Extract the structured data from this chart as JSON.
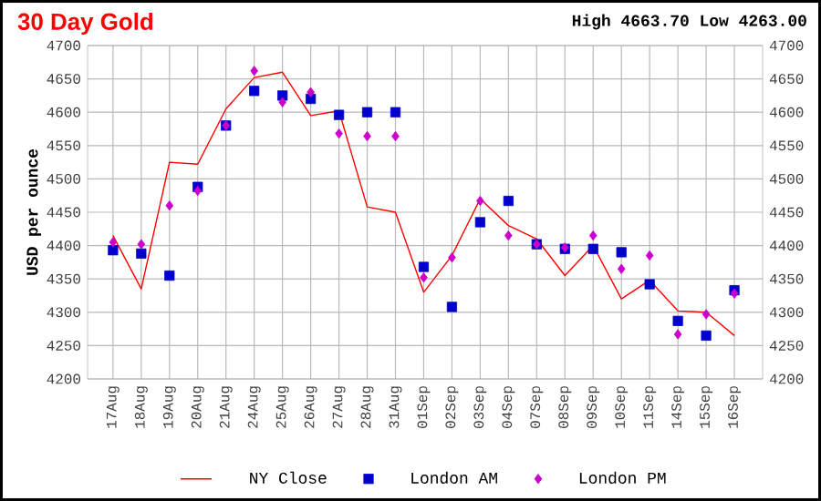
{
  "chart_data": {
    "type": "line",
    "title": "30 Day Gold",
    "subtitle": "High 4663.70 Low 4263.00",
    "ylabel": "USD per ounce",
    "categories": [
      "17Aug",
      "18Aug",
      "19Aug",
      "20Aug",
      "21Aug",
      "24Aug",
      "25Aug",
      "26Aug",
      "27Aug",
      "28Aug",
      "31Aug",
      "01Sep",
      "02Sep",
      "03Sep",
      "04Sep",
      "07Sep",
      "08Sep",
      "09Sep",
      "10Sep",
      "11Sep",
      "14Sep",
      "15Sep",
      "16Sep"
    ],
    "series": [
      {
        "name": "NY Close",
        "color": "#ff0000",
        "marker": "none",
        "values": [
          4415,
          4335,
          4525,
          4522,
          4605,
          4652,
          4660,
          4595,
          4602,
          4458,
          4450,
          4330,
          4385,
          4470,
          4430,
          4410,
          4355,
          4400,
          4320,
          4348,
          4302,
          4300,
          4265
        ]
      },
      {
        "name": "London AM",
        "type": "scatter",
        "color": "#0000cc",
        "marker": "square",
        "values": [
          4393,
          4388,
          4355,
          4488,
          4580,
          4632,
          4625,
          4620,
          4596,
          4600,
          4600,
          4368,
          4308,
          4435,
          4467,
          4402,
          4395,
          4395,
          4390,
          4342,
          4287,
          4265,
          4333
        ]
      },
      {
        "name": "London PM",
        "type": "scatter",
        "color": "#cc00cc",
        "marker": "diamond",
        "values": [
          4405,
          4402,
          4460,
          4482,
          4580,
          4662,
          4615,
          4630,
          4568,
          4564,
          4564,
          4352,
          4382,
          4467,
          4415,
          4402,
          4397,
          4415,
          4365,
          4385,
          4267,
          4297,
          4328
        ]
      }
    ],
    "ylim": [
      4200,
      4700
    ],
    "yticks": [
      4200,
      4250,
      4300,
      4350,
      4400,
      4450,
      4500,
      4550,
      4600,
      4650,
      4700
    ],
    "y2lim": [
      4200,
      4700
    ],
    "y2ticks": [
      4200,
      4250,
      4300,
      4350,
      4400,
      4450,
      4500,
      4550,
      4600,
      4650,
      4700
    ],
    "grid": true,
    "legend": "bottom"
  }
}
